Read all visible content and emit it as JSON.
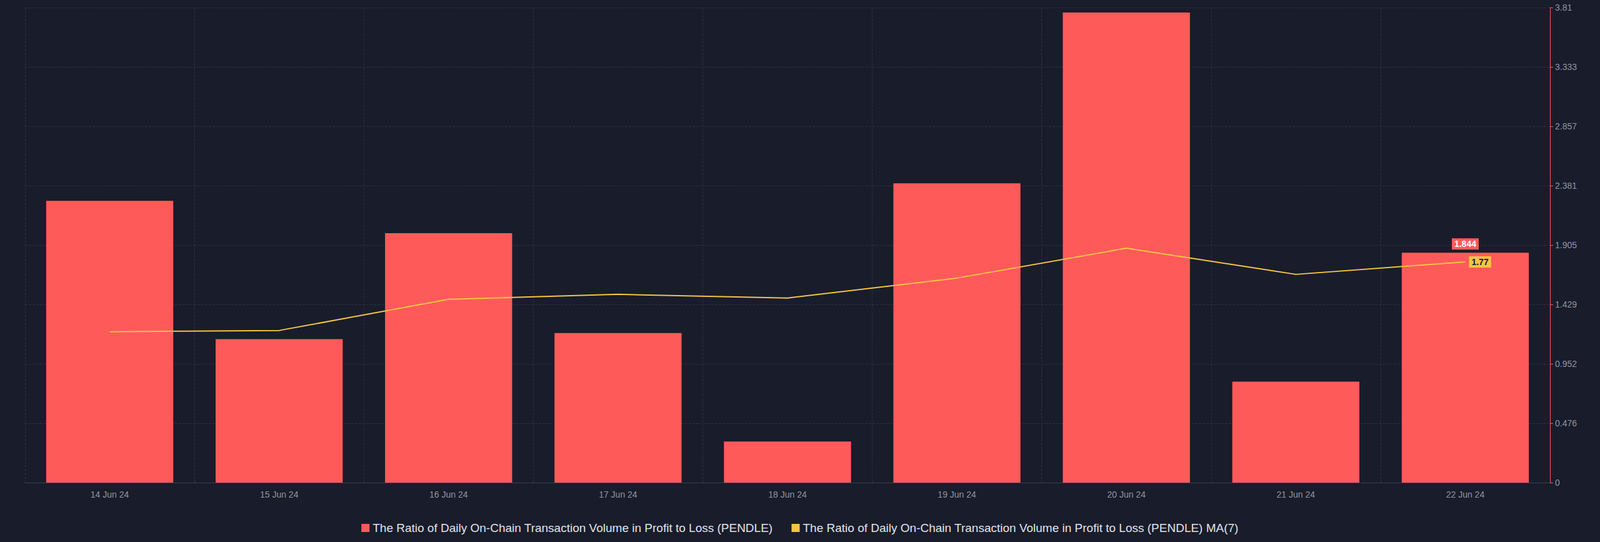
{
  "chart_data": {
    "type": "bar",
    "categories": [
      "14 Jun 24",
      "15 Jun 24",
      "16 Jun 24",
      "17 Jun 24",
      "18 Jun 24",
      "19 Jun 24",
      "20 Jun 24",
      "21 Jun 24",
      "22 Jun 24"
    ],
    "series": [
      {
        "name": "The Ratio of Daily On-Chain Transaction Volume in Profit to Loss (PENDLE)",
        "type": "bar",
        "color": "#ff5a5a",
        "values": [
          2.26,
          1.15,
          2.0,
          1.2,
          0.33,
          2.4,
          3.77,
          0.81,
          1.844
        ]
      },
      {
        "name": "The Ratio of Daily On-Chain Transaction Volume in Profit to Loss (PENDLE) MA(7)",
        "type": "line",
        "color": "#f5c542",
        "values": [
          1.21,
          1.22,
          1.47,
          1.51,
          1.48,
          1.64,
          1.88,
          1.67,
          1.77
        ]
      }
    ],
    "ylim": [
      0,
      3.81
    ],
    "yticks": [
      0,
      0.476,
      0.952,
      1.429,
      1.905,
      2.381,
      2.857,
      3.333,
      3.81
    ],
    "grid": true,
    "legend": "bottom"
  }
}
